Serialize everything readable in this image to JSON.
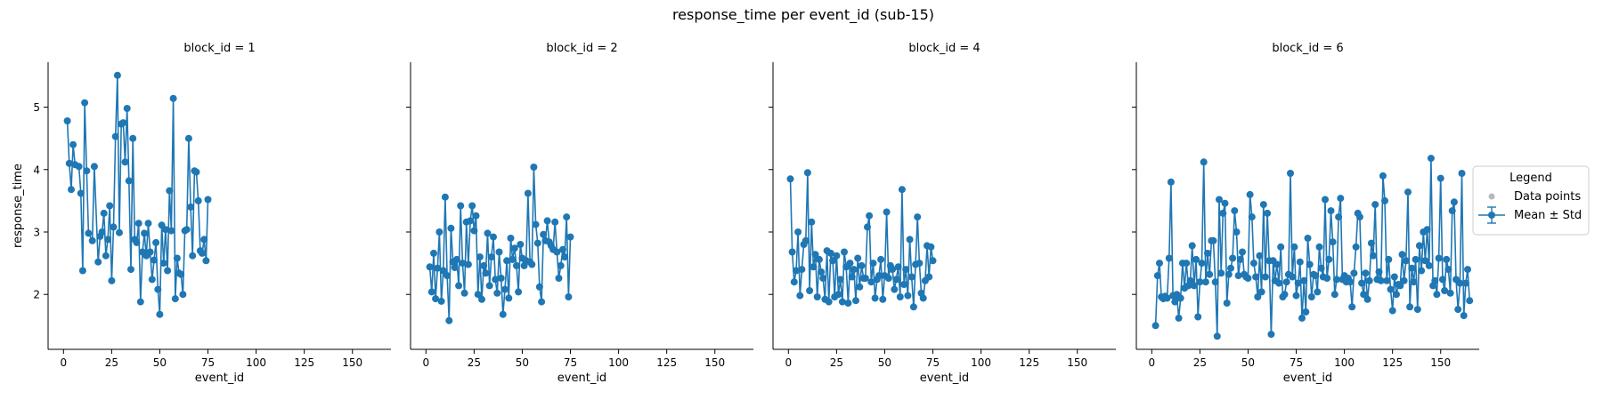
{
  "figure": {
    "title": "response_time per event_id (sub-15)"
  },
  "legend": {
    "title": "Legend",
    "items": [
      {
        "label": "Data points",
        "color": "#b8b8b8",
        "kind": "dot"
      },
      {
        "label": "Mean ± Std",
        "color": "#1f77b4",
        "kind": "errorbar-line"
      }
    ]
  },
  "colors": {
    "series": "#1f77b4",
    "axis": "#000000"
  },
  "chart_data": [
    {
      "type": "line",
      "title": "block_id = 1",
      "xlabel": "event_id",
      "ylabel": "response_time",
      "xlim": [
        -8,
        170
      ],
      "ylim": [
        1.12,
        5.72
      ],
      "xticks": [
        0,
        25,
        50,
        75,
        100,
        125,
        150
      ],
      "yticks": [
        2,
        3,
        4,
        5
      ],
      "series": [
        {
          "x": [
            2,
            3,
            4,
            5,
            6,
            8,
            9,
            10,
            11,
            12,
            13,
            15,
            16,
            18,
            19,
            20,
            21,
            22,
            23,
            24,
            25,
            26,
            27,
            28,
            29,
            30,
            31,
            32,
            33,
            34,
            35,
            36,
            37,
            38,
            39,
            40,
            41,
            42,
            43,
            44,
            45,
            46,
            47,
            48,
            49,
            50,
            51,
            52,
            53,
            54,
            55,
            56,
            57,
            58,
            59,
            60,
            61,
            62,
            63,
            64,
            65,
            66,
            67,
            68,
            69,
            70,
            71,
            72,
            73,
            74,
            75
          ],
          "y": [
            4.78,
            4.1,
            3.68,
            4.4,
            4.08,
            4.05,
            3.62,
            2.38,
            5.07,
            3.98,
            2.98,
            2.86,
            4.05,
            2.52,
            2.93,
            3.0,
            3.3,
            2.62,
            2.88,
            3.42,
            2.22,
            3.08,
            4.53,
            5.51,
            2.99,
            4.73,
            4.75,
            4.12,
            4.98,
            3.82,
            2.4,
            4.5,
            2.88,
            2.83,
            3.14,
            1.88,
            2.68,
            2.98,
            2.62,
            3.14,
            2.68,
            2.24,
            2.55,
            2.83,
            2.08,
            1.68,
            3.11,
            2.5,
            3.04,
            2.38,
            3.66,
            3.02,
            5.14,
            1.93,
            2.58,
            2.34,
            2.32,
            2.0,
            3.02,
            3.04,
            4.5,
            3.4,
            2.62,
            3.98,
            3.96,
            3.5,
            2.7,
            2.66,
            2.88,
            2.54,
            3.52
          ]
        }
      ]
    },
    {
      "type": "line",
      "title": "block_id = 2",
      "xlabel": "event_id",
      "ylabel": "",
      "xlim": [
        -8,
        170
      ],
      "ylim": [
        1.12,
        5.72
      ],
      "xticks": [
        0,
        25,
        50,
        75,
        100,
        125,
        150
      ],
      "yticks": [
        2,
        3,
        4,
        5
      ],
      "series": [
        {
          "x": [
            2,
            3,
            4,
            5,
            6,
            7,
            8,
            9,
            10,
            11,
            12,
            13,
            14,
            15,
            16,
            17,
            18,
            19,
            20,
            21,
            22,
            23,
            24,
            25,
            26,
            27,
            28,
            29,
            30,
            31,
            32,
            33,
            34,
            35,
            36,
            37,
            38,
            39,
            40,
            41,
            42,
            43,
            44,
            45,
            46,
            47,
            48,
            49,
            50,
            51,
            52,
            53,
            54,
            55,
            56,
            57,
            58,
            59,
            60,
            61,
            62,
            63,
            64,
            65,
            66,
            67,
            68,
            69,
            70,
            71,
            72,
            73,
            74,
            75
          ],
          "y": [
            2.44,
            2.04,
            2.66,
            1.93,
            2.42,
            3.0,
            1.89,
            2.38,
            3.56,
            2.3,
            1.58,
            3.06,
            2.52,
            2.43,
            2.56,
            2.14,
            3.42,
            2.5,
            2.02,
            3.16,
            2.48,
            3.18,
            3.42,
            3.02,
            3.26,
            2.0,
            2.6,
            1.92,
            2.46,
            2.34,
            2.98,
            2.14,
            2.6,
            2.92,
            2.24,
            2.02,
            2.68,
            2.26,
            1.68,
            2.08,
            2.54,
            1.94,
            2.9,
            2.56,
            2.74,
            2.46,
            2.04,
            2.8,
            2.58,
            2.46,
            2.54,
            3.62,
            2.52,
            2.48,
            4.04,
            3.12,
            2.82,
            2.12,
            1.88,
            2.96,
            2.86,
            3.18,
            2.84,
            2.78,
            2.72,
            3.16,
            2.68,
            2.26,
            2.46,
            2.72,
            2.6,
            3.24,
            1.96,
            2.92
          ]
        }
      ]
    },
    {
      "type": "line",
      "title": "block_id = 4",
      "xlabel": "event_id",
      "ylabel": "",
      "xlim": [
        -8,
        170
      ],
      "ylim": [
        1.12,
        5.72
      ],
      "xticks": [
        0,
        25,
        50,
        75,
        100,
        125,
        150
      ],
      "yticks": [
        2,
        3,
        4,
        5
      ],
      "series": [
        {
          "x": [
            1,
            2,
            3,
            4,
            5,
            6,
            7,
            8,
            9,
            10,
            11,
            12,
            13,
            14,
            15,
            16,
            17,
            18,
            19,
            20,
            21,
            22,
            23,
            24,
            25,
            26,
            27,
            28,
            29,
            30,
            31,
            32,
            33,
            34,
            35,
            36,
            37,
            38,
            39,
            40,
            41,
            42,
            43,
            44,
            45,
            46,
            47,
            48,
            49,
            50,
            51,
            52,
            53,
            54,
            55,
            56,
            57,
            58,
            59,
            60,
            61,
            62,
            63,
            64,
            65,
            66,
            67,
            68,
            69,
            70,
            71,
            72,
            73,
            74,
            75
          ],
          "y": [
            3.85,
            2.68,
            2.2,
            2.38,
            3.0,
            1.98,
            2.4,
            2.8,
            2.86,
            3.95,
            2.06,
            3.16,
            2.44,
            2.64,
            1.96,
            2.56,
            2.36,
            2.26,
            1.92,
            2.7,
            1.88,
            2.66,
            2.54,
            1.96,
            2.62,
            2.0,
            2.24,
            1.88,
            2.68,
            2.44,
            1.86,
            2.5,
            2.28,
            2.4,
            1.9,
            2.58,
            2.12,
            2.46,
            2.26,
            2.26,
            3.08,
            3.26,
            2.2,
            2.5,
            1.94,
            2.24,
            2.3,
            2.56,
            1.92,
            2.3,
            3.32,
            2.26,
            2.46,
            2.4,
            2.08,
            2.24,
            2.44,
            1.96,
            3.68,
            2.16,
            2.4,
            1.98,
            2.88,
            2.28,
            1.8,
            2.48,
            3.24,
            2.5,
            2.02,
            1.94,
            2.22,
            2.78,
            2.28,
            2.76,
            2.54
          ]
        }
      ]
    },
    {
      "type": "line",
      "title": "block_id = 6",
      "xlabel": "event_id",
      "ylabel": "",
      "xlim": [
        -8,
        170
      ],
      "ylim": [
        1.12,
        5.72
      ],
      "xticks": [
        0,
        25,
        50,
        75,
        100,
        125,
        150
      ],
      "yticks": [
        2,
        3,
        4,
        5
      ],
      "series": [
        {
          "x": [
            2,
            3,
            4,
            5,
            6,
            7,
            8,
            9,
            10,
            11,
            12,
            13,
            14,
            15,
            16,
            17,
            18,
            19,
            20,
            21,
            22,
            23,
            24,
            25,
            26,
            27,
            28,
            29,
            30,
            31,
            32,
            33,
            34,
            35,
            36,
            37,
            38,
            39,
            40,
            41,
            42,
            43,
            44,
            45,
            46,
            47,
            48,
            49,
            50,
            51,
            52,
            53,
            54,
            55,
            56,
            57,
            58,
            59,
            60,
            61,
            62,
            63,
            64,
            65,
            66,
            67,
            68,
            69,
            70,
            71,
            72,
            73,
            74,
            75,
            76,
            77,
            78,
            79,
            80,
            81,
            82,
            83,
            84,
            85,
            86,
            87,
            88,
            89,
            90,
            91,
            92,
            93,
            94,
            95,
            96,
            97,
            98,
            99,
            100,
            101,
            102,
            103,
            104,
            105,
            106,
            107,
            108,
            109,
            110,
            111,
            112,
            113,
            114,
            115,
            116,
            117,
            118,
            119,
            120,
            121,
            122,
            123,
            124,
            125,
            126,
            127,
            128,
            129,
            130,
            131,
            132,
            133,
            134,
            135,
            136,
            137,
            138,
            139,
            140,
            141,
            142,
            143,
            144,
            145,
            146,
            147,
            148,
            149,
            150,
            151,
            152,
            153,
            154,
            155,
            156,
            157,
            158,
            159,
            160,
            161,
            162,
            163,
            164,
            165
          ],
          "y": [
            1.5,
            2.3,
            2.5,
            1.96,
            1.93,
            1.97,
            1.94,
            2.58,
            3.8,
            1.98,
            1.88,
            2.0,
            1.62,
            1.94,
            2.5,
            2.1,
            2.5,
            2.14,
            2.22,
            2.78,
            2.14,
            2.56,
            1.64,
            2.2,
            2.5,
            4.12,
            2.2,
            2.66,
            2.32,
            2.86,
            2.86,
            2.2,
            1.33,
            3.52,
            2.34,
            3.3,
            3.46,
            1.86,
            2.32,
            2.42,
            2.58,
            3.34,
            3.0,
            2.3,
            2.56,
            2.68,
            2.32,
            2.28,
            2.26,
            3.6,
            3.24,
            2.5,
            2.28,
            1.96,
            2.62,
            2.04,
            3.44,
            2.28,
            3.3,
            2.54,
            1.36,
            2.54,
            2.22,
            2.48,
            2.18,
            2.76,
            1.96,
            2.0,
            2.2,
            2.32,
            3.94,
            2.28,
            2.76,
            1.98,
            2.18,
            2.52,
            1.62,
            2.22,
            1.72,
            2.9,
            2.48,
            1.96,
            2.32,
            2.3,
            2.04,
            2.76,
            2.42,
            2.28,
            3.52,
            2.26,
            2.56,
            3.34,
            2.84,
            2.0,
            2.24,
            3.24,
            3.54,
            2.24,
            2.3,
            2.2,
            2.26,
            2.2,
            1.8,
            2.34,
            2.76,
            3.3,
            3.24,
            2.18,
            2.0,
            2.34,
            1.92,
            2.22,
            2.82,
            2.62,
            3.44,
            2.24,
            2.36,
            2.22,
            3.9,
            3.5,
            2.22,
            2.56,
            2.08,
            1.74,
            2.28,
            2.0,
            2.16,
            2.14,
            2.64,
            2.22,
            2.54,
            3.64,
            1.8,
            2.42,
            2.2,
            2.56,
            1.76,
            2.78,
            2.38,
            3.0,
            2.54,
            3.04,
            2.46,
            4.18,
            2.14,
            2.22,
            2.0,
            2.58,
            3.86,
            2.24,
            2.06,
            2.56,
            2.4,
            2.02,
            3.34,
            3.48,
            2.24,
            1.76,
            2.18,
            3.94,
            1.66,
            2.18,
            2.4,
            1.9
          ]
        }
      ]
    }
  ]
}
